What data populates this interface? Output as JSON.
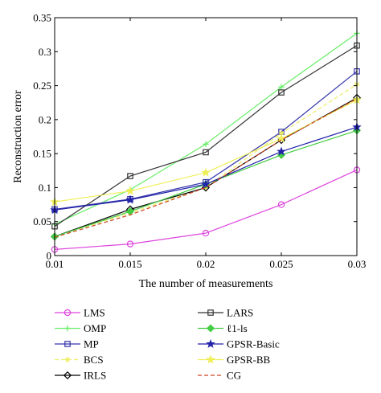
{
  "chart_data": {
    "type": "line",
    "title": "",
    "xlabel": "The number of measurements",
    "ylabel": "Reconstruction error",
    "xlim": [
      0.01,
      0.03
    ],
    "ylim": [
      0,
      0.35
    ],
    "grid": false,
    "legend_position": "below",
    "x": [
      0.01,
      0.015,
      0.02,
      0.025,
      0.03
    ],
    "x_tick_labels": [
      "0.01",
      "0.015",
      "0.02",
      "0.025",
      "0.03"
    ],
    "y_ticks": [
      0,
      0.05,
      0.1,
      0.15,
      0.2,
      0.25,
      0.3,
      0.35
    ],
    "y_tick_labels": [
      "0",
      "0.05",
      "0.1",
      "0.15",
      "0.2",
      "0.25",
      "0.3",
      "0.35"
    ],
    "series": [
      {
        "name": "LMS",
        "color": "#dd44dd",
        "marker": "circle",
        "dash": "solid",
        "values": [
          0.009,
          0.017,
          0.033,
          0.075,
          0.126
        ]
      },
      {
        "name": "OMP",
        "color": "#66ee66",
        "marker": "plus",
        "dash": "solid",
        "values": [
          0.046,
          0.097,
          0.164,
          0.248,
          0.327
        ]
      },
      {
        "name": "MP",
        "color": "#3333aa",
        "marker": "square",
        "dash": "solid",
        "values": [
          0.068,
          0.083,
          0.108,
          0.182,
          0.271
        ]
      },
      {
        "name": "BCS",
        "color": "#eeee66",
        "marker": "asterisk",
        "dash": "dashed",
        "values": [
          0.028,
          0.063,
          0.1,
          0.18,
          0.252
        ]
      },
      {
        "name": "IRLS",
        "color": "#000000",
        "marker": "diamond",
        "dash": "solid",
        "values": [
          0.028,
          0.068,
          0.1,
          0.17,
          0.232
        ]
      },
      {
        "name": "LARS",
        "color": "#333333",
        "marker": "square",
        "dash": "solid",
        "values": [
          0.043,
          0.117,
          0.152,
          0.24,
          0.309
        ]
      },
      {
        "name": "ℓ1-ls",
        "color": "#44cc44",
        "marker": "diamond-filled",
        "dash": "solid",
        "values": [
          0.028,
          0.065,
          0.105,
          0.148,
          0.184
        ]
      },
      {
        "name": "GPSR-Basic",
        "color": "#2222aa",
        "marker": "star",
        "dash": "solid",
        "values": [
          0.067,
          0.082,
          0.105,
          0.153,
          0.189
        ]
      },
      {
        "name": "GPSR-BB",
        "color": "#eeee55",
        "marker": "star",
        "dash": "solid",
        "values": [
          0.079,
          0.095,
          0.122,
          0.172,
          0.229
        ]
      },
      {
        "name": "CG",
        "color": "#cc4422",
        "marker": "none",
        "dash": "dashed",
        "values": [
          0.027,
          0.06,
          0.1,
          0.17,
          0.231
        ]
      }
    ]
  }
}
